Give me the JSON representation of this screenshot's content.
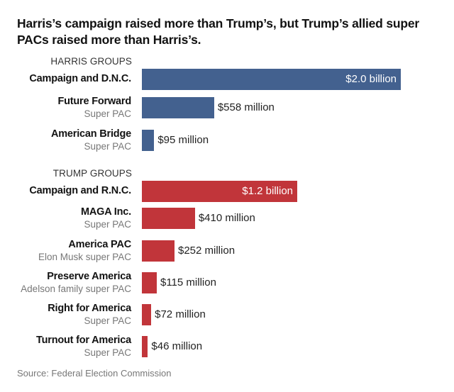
{
  "chart_data": {
    "type": "bar",
    "orientation": "horizontal",
    "title": "Harris’s campaign raised more than Trump’s, but Trump’s allied super PACs raised more than Harris’s.",
    "unit": "millions of dollars",
    "source": "Source: Federal Election Commission",
    "colors": {
      "harris": "#43618f",
      "trump": "#c1353a"
    },
    "groups": [
      {
        "label": "HARRIS GROUPS",
        "color_key": "harris",
        "items": [
          {
            "name": "Campaign and D.N.C.",
            "sub": "",
            "value": 2000,
            "label": "$2.0 billion"
          },
          {
            "name": "Future Forward",
            "sub": "Super PAC",
            "value": 558,
            "label": "$558 million"
          },
          {
            "name": "American Bridge",
            "sub": "Super PAC",
            "value": 95,
            "label": "$95 million"
          }
        ]
      },
      {
        "label": "TRUMP GROUPS",
        "color_key": "trump",
        "items": [
          {
            "name": "Campaign and R.N.C.",
            "sub": "",
            "value": 1200,
            "label": "$1.2 billion"
          },
          {
            "name": "MAGA Inc.",
            "sub": "Super PAC",
            "value": 410,
            "label": "$410 million"
          },
          {
            "name": "America PAC",
            "sub": "Elon Musk super PAC",
            "value": 252,
            "label": "$252 million"
          },
          {
            "name": "Preserve America",
            "sub": "Adelson family super PAC",
            "value": 115,
            "label": "$115 million"
          },
          {
            "name": "Right for America",
            "sub": "Super PAC",
            "value": 72,
            "label": "$72 million"
          },
          {
            "name": "Turnout for America",
            "sub": "Super PAC",
            "value": 46,
            "label": "$46 million"
          }
        ]
      }
    ]
  }
}
